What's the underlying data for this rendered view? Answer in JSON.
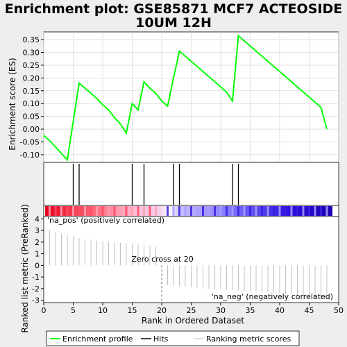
{
  "title_line1": "Enrichment plot: GSE85871 MCF7 ACTEOSIDE",
  "title_line2": "10UM 12H",
  "legend": {
    "enrichment_profile": "Enrichment profile",
    "hits": "Hits",
    "ranking_metric": "Ranking metric scores"
  },
  "colors": {
    "es_line": "#00ff00",
    "hits": "#000000",
    "metric": "#c0c0c0",
    "pos_label": "#cc0000",
    "neg_label": "#0000aa"
  },
  "labels": {
    "pos": "'na_pos' (positively correlated)",
    "neg": "'na_neg' (negatively correlated)",
    "zero_cross": "Zero cross at 20"
  },
  "chart_data": [
    {
      "type": "line",
      "name": "enrichment-score",
      "ylabel": "Enrichment score (ES)",
      "ylim": [
        -0.13,
        0.38
      ],
      "yticks": [
        -0.1,
        -0.05,
        0.0,
        0.05,
        0.1,
        0.15,
        0.2,
        0.25,
        0.3,
        0.35
      ],
      "xlim": [
        0,
        50
      ],
      "grid": true,
      "series": [
        {
          "name": "Enrichment profile",
          "x": [
            0,
            1,
            2,
            3,
            4,
            5,
            6,
            7,
            8,
            9,
            10,
            11,
            12,
            13,
            14,
            15,
            16,
            17,
            18,
            19,
            20,
            21,
            22,
            23,
            24,
            25,
            26,
            27,
            28,
            29,
            30,
            31,
            32,
            33,
            34,
            35,
            36,
            37,
            38,
            39,
            40,
            41,
            42,
            43,
            44,
            45,
            46,
            47,
            48
          ],
          "y": [
            -0.025,
            -0.045,
            -0.07,
            -0.095,
            -0.12,
            0.03,
            0.18,
            0.16,
            0.14,
            0.12,
            0.095,
            0.075,
            0.045,
            0.02,
            -0.015,
            0.1,
            0.075,
            0.185,
            0.16,
            0.14,
            0.11,
            0.09,
            0.2,
            0.305,
            0.285,
            0.265,
            0.245,
            0.225,
            0.205,
            0.185,
            0.165,
            0.145,
            0.11,
            0.365,
            0.345,
            0.325,
            0.305,
            0.285,
            0.265,
            0.245,
            0.225,
            0.205,
            0.185,
            0.165,
            0.145,
            0.125,
            0.105,
            0.085,
            0.0
          ]
        }
      ]
    },
    {
      "type": "bar",
      "name": "hits",
      "x": [
        5,
        6,
        15,
        17,
        22,
        23,
        32,
        33
      ]
    },
    {
      "type": "bar",
      "name": "ranking-metric",
      "xlabel": "Rank in Ordered Dataset",
      "ylabel": "Ranked list metric (PreRanked)",
      "ylim": [
        -3.2,
        4.2
      ],
      "yticks": [
        -3,
        -2,
        -1,
        0,
        1,
        2,
        3,
        4
      ],
      "xlim": [
        0,
        50
      ],
      "xticks": [
        0,
        5,
        10,
        15,
        20,
        25,
        30,
        35,
        40,
        45,
        50
      ],
      "zero_cross": 20,
      "x": [
        1,
        2,
        3,
        4,
        5,
        6,
        7,
        8,
        9,
        10,
        11,
        12,
        13,
        14,
        15,
        16,
        17,
        18,
        19,
        21,
        22,
        23,
        24,
        25,
        26,
        27,
        28,
        29,
        30,
        31,
        32,
        33,
        34,
        35,
        36,
        37,
        38,
        39,
        40,
        41,
        42,
        43,
        44,
        45,
        46,
        47,
        48
      ],
      "values": [
        3.05,
        2.85,
        2.7,
        2.6,
        2.5,
        2.35,
        2.25,
        2.2,
        2.15,
        2.1,
        2.05,
        2.0,
        1.95,
        1.9,
        1.85,
        1.8,
        1.75,
        1.7,
        1.6,
        -1.7,
        -1.75,
        -1.8,
        -1.85,
        -1.9,
        -1.95,
        -2.0,
        -2.0,
        -2.05,
        -2.05,
        -2.1,
        -2.1,
        -2.15,
        -2.2,
        -2.2,
        -2.25,
        -2.3,
        -2.3,
        -2.35,
        -2.4,
        -2.45,
        -2.5,
        -2.55,
        -2.6,
        -2.65,
        -2.7,
        -2.75,
        -2.8
      ]
    }
  ]
}
